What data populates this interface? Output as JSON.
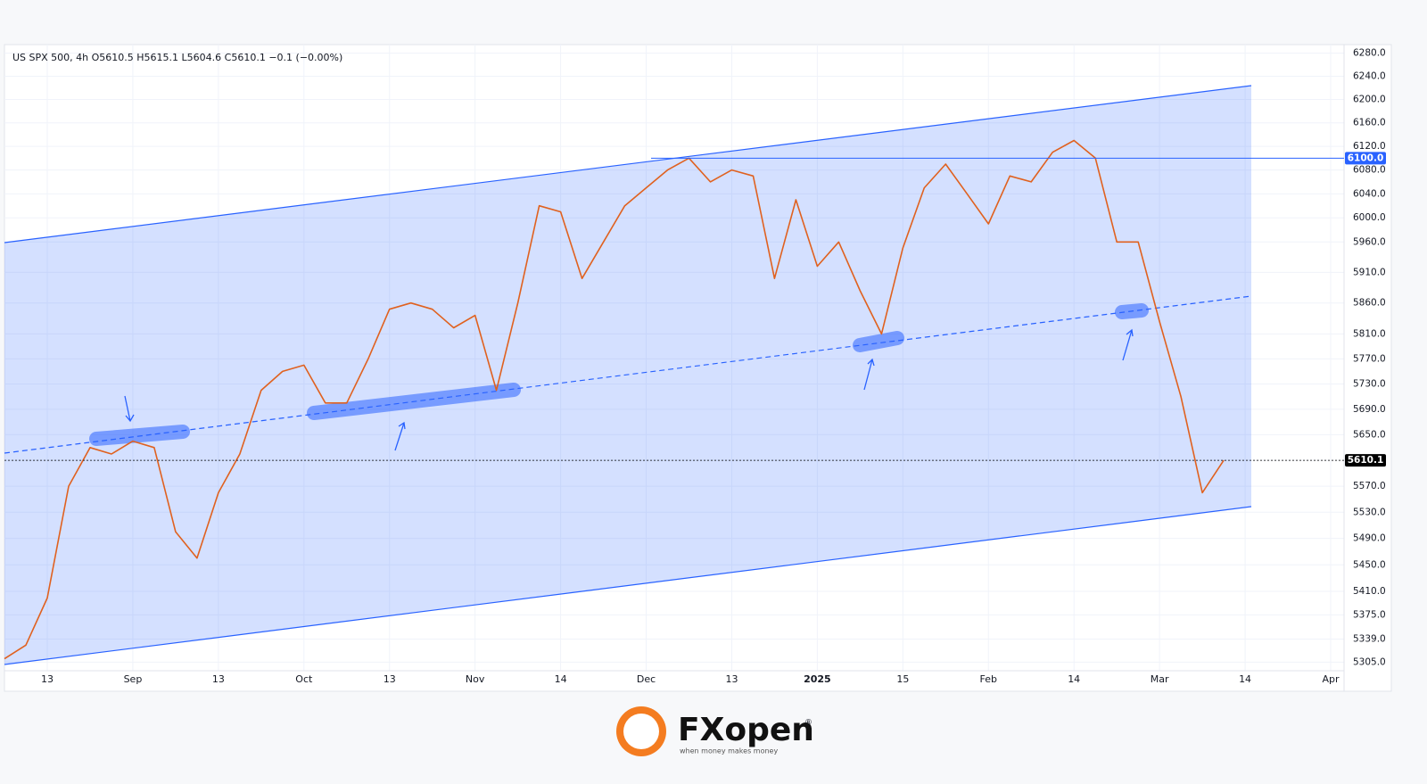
{
  "chart_data": {
    "type": "line",
    "title": "US SPX 500, 4h  O5610.5  H5615.1  L5604.6  C5610.1  −0.1 (−0.00%)",
    "categories": [
      null,
      null,
      "13",
      null,
      null,
      null,
      "Sep",
      null,
      null,
      null,
      "13",
      null,
      null,
      null,
      "Oct",
      null,
      null,
      null,
      "13",
      null,
      null,
      null,
      "Nov",
      null,
      null,
      null,
      "14",
      null,
      null,
      null,
      "Dec",
      null,
      null,
      null,
      "13",
      null,
      null,
      null,
      "2025",
      null,
      null,
      null,
      "15",
      null,
      null,
      null,
      "Feb",
      null,
      null,
      null,
      "14",
      null,
      null,
      null,
      "Mar",
      null,
      null,
      null,
      "14",
      null,
      null,
      null,
      "Apr"
    ],
    "series": [
      {
        "name": "US SPX 500",
        "color": "#e0611f",
        "values": [
          5310,
          5330,
          5400,
          5570,
          5630,
          5620,
          5640,
          5630,
          5500,
          5460,
          5560,
          5620,
          5720,
          5750,
          5760,
          5700,
          5700,
          5770,
          5850,
          5860,
          5850,
          5820,
          5840,
          5720,
          5860,
          6020,
          6010,
          5900,
          5960,
          6020,
          6050,
          6080,
          6100,
          6060,
          6080,
          6070,
          5900,
          6030,
          5920,
          5960,
          5880,
          5810,
          5950,
          6050,
          6090,
          6040,
          5990,
          6070,
          6060,
          6110,
          6130,
          6100,
          5960,
          5960,
          5830,
          5710,
          5560,
          5610.1,
          null,
          null,
          null,
          null,
          null
        ]
      }
    ],
    "log_scale": true,
    "ylim": [
      5295,
      6295
    ],
    "yticks": [
      {
        "value": 6280,
        "label": "6280.0"
      },
      {
        "value": 6240,
        "label": "6240.0"
      },
      {
        "value": 6200,
        "label": "6200.0"
      },
      {
        "value": 6160,
        "label": "6160.0"
      },
      {
        "value": 6120,
        "label": "6120.0"
      },
      {
        "value": 6080,
        "label": "6080.0"
      },
      {
        "value": 6040,
        "label": "6040.0"
      },
      {
        "value": 6000,
        "label": "6000.0"
      },
      {
        "value": 5960,
        "label": "5960.0"
      },
      {
        "value": 5910,
        "label": "5910.0"
      },
      {
        "value": 5860,
        "label": "5860.0"
      },
      {
        "value": 5810,
        "label": "5810.0"
      },
      {
        "value": 5770,
        "label": "5770.0"
      },
      {
        "value": 5730,
        "label": "5730.0"
      },
      {
        "value": 5690,
        "label": "5690.0"
      },
      {
        "value": 5650,
        "label": "5650.0"
      },
      {
        "value": 5610,
        "label": "5610.0"
      },
      {
        "value": 5570,
        "label": "5570.0"
      },
      {
        "value": 5530,
        "label": "5530.0"
      },
      {
        "value": 5490,
        "label": "5490.0"
      },
      {
        "value": 5450,
        "label": "5450.0"
      },
      {
        "value": 5410,
        "label": "5410.0"
      },
      {
        "value": 5375,
        "label": "5375.0"
      },
      {
        "value": 5339,
        "label": "5339.0"
      },
      {
        "value": 5305,
        "label": "5305.0"
      }
    ],
    "grid": true,
    "price_lines": [
      {
        "value": 6100,
        "label": "6100.0",
        "color": "#2962ff"
      },
      {
        "value": 5610.1,
        "label": "5610.1",
        "color": "#000000"
      }
    ]
  },
  "branding": {
    "logo": "FXopen",
    "registered": "®",
    "tagline": "when money makes money"
  }
}
